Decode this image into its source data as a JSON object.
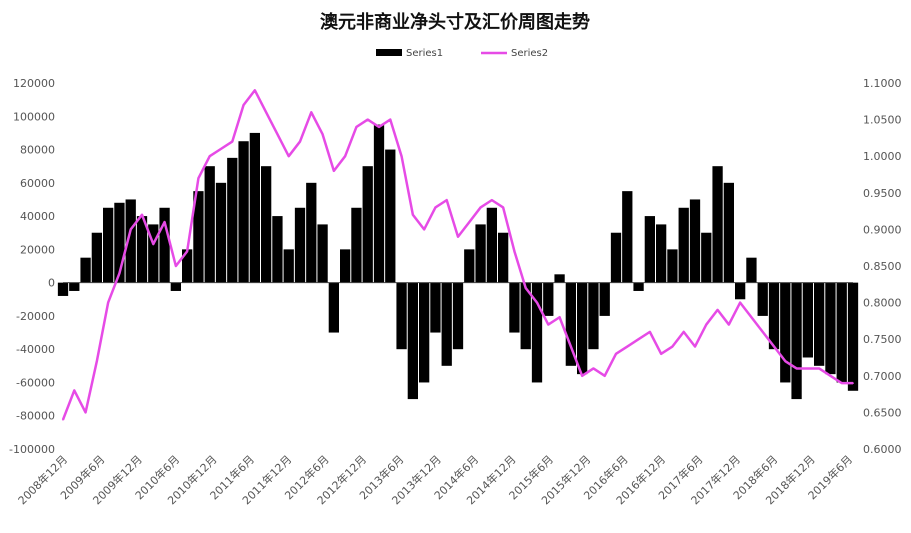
{
  "chart_data": {
    "type": "bar+line",
    "title": "澳元非商业净头寸及汇价周图走势",
    "legend_position": "top-center",
    "grid": false,
    "colors": {
      "series1": "#000000",
      "series2": "#e64be6"
    },
    "x_labels": [
      "2008年12月",
      "2009年6月",
      "2009年12月",
      "2010年6月",
      "2010年12月",
      "2011年6月",
      "2011年12月",
      "2012年6月",
      "2012年12月",
      "2013年6月",
      "2013年12月",
      "2014年6月",
      "2014年12月",
      "2015年6月",
      "2015年12月",
      "2016年6月",
      "2016年12月",
      "2017年6月",
      "2017年12月",
      "2018年6月",
      "2018年12月",
      "2019年6月"
    ],
    "y_left": {
      "min": -100000,
      "max": 120000,
      "ticks": [
        "-100000",
        "-80000",
        "-60000",
        "-40000",
        "-20000",
        "0",
        "20000",
        "40000",
        "60000",
        "80000",
        "100000",
        "120000"
      ]
    },
    "y_right": {
      "min": 0.6,
      "max": 1.1,
      "ticks": [
        "0.6000",
        "0.6500",
        "0.7000",
        "0.7500",
        "0.8000",
        "0.8500",
        "0.9000",
        "0.9500",
        "1.0000",
        "1.0500",
        "1.1000"
      ]
    },
    "x": [
      "2008-11",
      "2008-12",
      "2009-02",
      "2009-04",
      "2009-06",
      "2009-08",
      "2009-10",
      "2009-12",
      "2010-02",
      "2010-04",
      "2010-05",
      "2010-06",
      "2010-08",
      "2010-10",
      "2010-12",
      "2011-02",
      "2011-04",
      "2011-05",
      "2011-07",
      "2011-09",
      "2011-10",
      "2011-12",
      "2012-02",
      "2012-04",
      "2012-05",
      "2012-06",
      "2012-08",
      "2012-10",
      "2012-12",
      "2013-02",
      "2013-04",
      "2013-05",
      "2013-06",
      "2013-08",
      "2013-10",
      "2013-12",
      "2014-02",
      "2014-04",
      "2014-06",
      "2014-08",
      "2014-10",
      "2014-12",
      "2015-01",
      "2015-03",
      "2015-05",
      "2015-07",
      "2015-09",
      "2015-11",
      "2016-01",
      "2016-03",
      "2016-05",
      "2016-07",
      "2016-09",
      "2016-11",
      "2017-01",
      "2017-03",
      "2017-05",
      "2017-07",
      "2017-09",
      "2017-11",
      "2018-01",
      "2018-03",
      "2018-05",
      "2018-07",
      "2018-09",
      "2018-11",
      "2019-01",
      "2019-03",
      "2019-05",
      "2019-07",
      "2019-08"
    ],
    "series": [
      {
        "name": "Series1",
        "axis": "left",
        "type": "bar",
        "values": [
          -8000,
          -5000,
          15000,
          30000,
          45000,
          48000,
          50000,
          40000,
          35000,
          45000,
          -5000,
          20000,
          55000,
          70000,
          60000,
          75000,
          85000,
          90000,
          70000,
          40000,
          20000,
          45000,
          60000,
          35000,
          -30000,
          20000,
          45000,
          70000,
          95000,
          80000,
          -40000,
          -70000,
          -60000,
          -30000,
          -50000,
          -40000,
          20000,
          35000,
          45000,
          30000,
          -30000,
          -40000,
          -60000,
          -20000,
          5000,
          -50000,
          -55000,
          -40000,
          -20000,
          30000,
          55000,
          -5000,
          40000,
          35000,
          20000,
          45000,
          50000,
          30000,
          70000,
          60000,
          -10000,
          15000,
          -20000,
          -40000,
          -60000,
          -70000,
          -45000,
          -50000,
          -55000,
          -60000,
          -65000
        ]
      },
      {
        "name": "Series2",
        "axis": "right",
        "type": "line",
        "values": [
          0.64,
          0.68,
          0.65,
          0.72,
          0.8,
          0.84,
          0.9,
          0.92,
          0.88,
          0.91,
          0.85,
          0.87,
          0.97,
          1.0,
          1.01,
          1.02,
          1.07,
          1.09,
          1.06,
          1.03,
          1.0,
          1.02,
          1.06,
          1.03,
          0.98,
          1.0,
          1.04,
          1.05,
          1.04,
          1.05,
          1.0,
          0.92,
          0.9,
          0.93,
          0.94,
          0.89,
          0.91,
          0.93,
          0.94,
          0.93,
          0.87,
          0.82,
          0.8,
          0.77,
          0.78,
          0.74,
          0.7,
          0.71,
          0.7,
          0.73,
          0.74,
          0.75,
          0.76,
          0.73,
          0.74,
          0.76,
          0.74,
          0.77,
          0.79,
          0.77,
          0.8,
          0.78,
          0.76,
          0.74,
          0.72,
          0.71,
          0.71,
          0.71,
          0.7,
          0.69,
          0.69
        ]
      }
    ]
  }
}
